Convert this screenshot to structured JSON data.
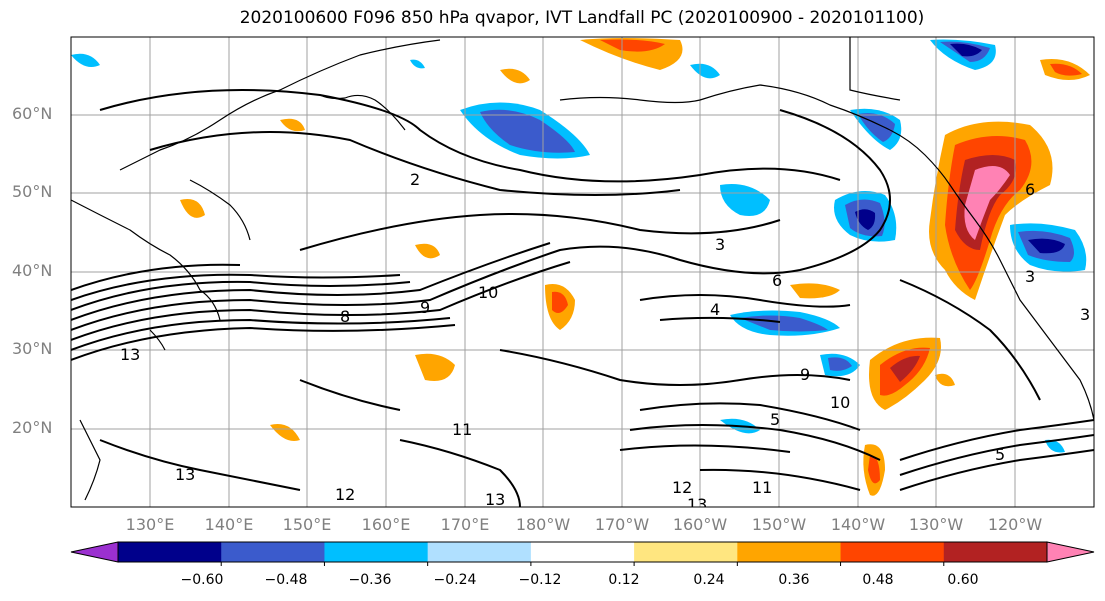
{
  "title": "2020100600 F096 850 hPa qvapor, IVT Landfall PC (2020100900 - 2020101100)",
  "lat_labels": [
    "60°N",
    "50°N",
    "40°N",
    "30°N",
    "20°N"
  ],
  "lon_labels": [
    "130°E",
    "140°E",
    "150°E",
    "160°E",
    "170°E",
    "180°W",
    "170°W",
    "160°W",
    "150°W",
    "140°W",
    "130°W",
    "120°W"
  ],
  "contour_labels": [
    "2",
    "3",
    "4",
    "5",
    "6",
    "8",
    "9",
    "10",
    "11",
    "12",
    "13",
    "12",
    "13",
    "11",
    "13",
    "13",
    "9",
    "10",
    "5",
    "6",
    "3",
    "3"
  ],
  "colorbar": {
    "tick_labels": [
      "−0.60",
      "−0.48",
      "−0.36",
      "−0.24",
      "−0.12",
      "0.12",
      "0.24",
      "0.36",
      "0.48",
      "0.60"
    ],
    "colors": [
      "#9b30d0",
      "#00008b",
      "#3b5bcc",
      "#00bfff",
      "#b0e0ff",
      "#ffffff",
      "#ffe680",
      "#ffa500",
      "#ff4500",
      "#b22222",
      "#ff82b4"
    ]
  },
  "colors": {
    "coast": "#000000",
    "grid": "#a0a0a0",
    "contour": "#000000"
  }
}
